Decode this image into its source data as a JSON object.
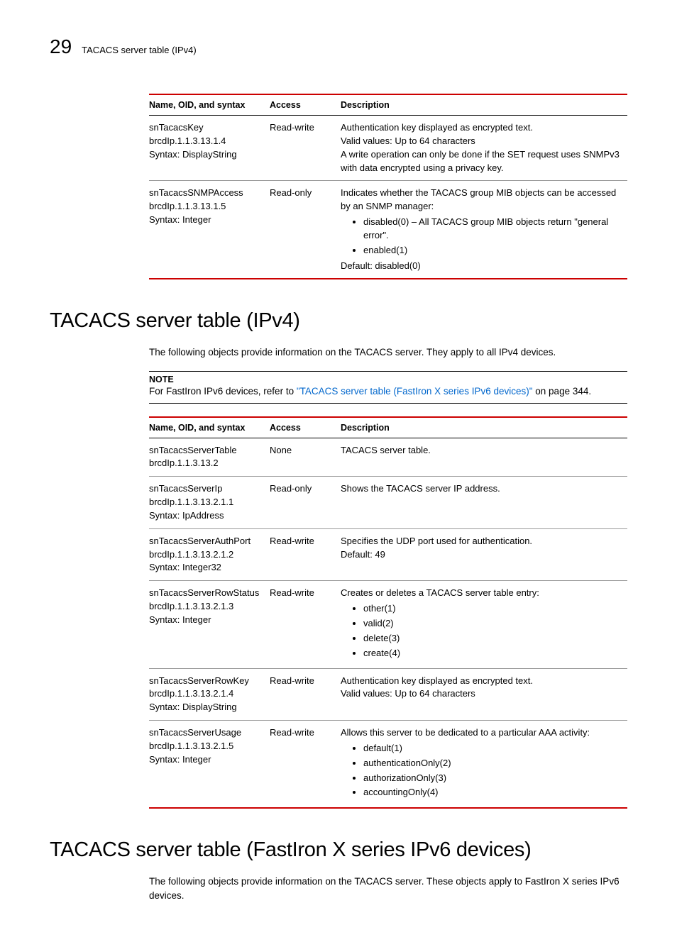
{
  "header": {
    "page_number": "29",
    "running_title": "TACACS server table (IPv4)"
  },
  "table1": {
    "columns": [
      "Name, OID, and syntax",
      "Access",
      "Description"
    ],
    "rows": [
      {
        "name_lines": [
          "snTacacsKey",
          "brcdIp.1.1.3.13.1.4",
          "Syntax: DisplayString"
        ],
        "access": "Read-write",
        "desc_lines": [
          "Authentication key displayed as encrypted text.",
          "Valid values: Up to 64 characters",
          "A write operation can only be done if the SET request uses SNMPv3 with data encrypted using a privacy key."
        ],
        "bullets": [],
        "trailing": []
      },
      {
        "name_lines": [
          "snTacacsSNMPAccess",
          "brcdIp.1.1.3.13.1.5",
          "Syntax: Integer"
        ],
        "access": "Read-only",
        "desc_lines": [
          "Indicates whether the TACACS group MIB objects can be accessed by an SNMP manager:"
        ],
        "bullets": [
          "disabled(0) – All TACACS group MIB objects return \"general error\".",
          "enabled(1)"
        ],
        "trailing": [
          "Default: disabled(0)"
        ]
      }
    ]
  },
  "section1": {
    "title": "TACACS server table (IPv4)",
    "intro": "The following objects provide information on the TACACS server. They apply to all IPv4 devices.",
    "note_label": "NOTE",
    "note_pre": "For FastIron IPv6 devices, refer to ",
    "note_link": "\"TACACS server table (FastIron X series IPv6 devices)\"",
    "note_post": " on page 344."
  },
  "table2": {
    "columns": [
      "Name, OID, and syntax",
      "Access",
      "Description"
    ],
    "rows": [
      {
        "name_lines": [
          "snTacacsServerTable",
          "brcdIp.1.1.3.13.2"
        ],
        "access": "None",
        "desc_lines": [
          "TACACS server table."
        ],
        "bullets": [],
        "trailing": []
      },
      {
        "name_lines": [
          "snTacacsServerIp",
          "brcdIp.1.1.3.13.2.1.1",
          "Syntax: IpAddress"
        ],
        "access": "Read-only",
        "desc_lines": [
          "Shows the TACACS server IP address."
        ],
        "bullets": [],
        "trailing": []
      },
      {
        "name_lines": [
          "snTacacsServerAuthPort",
          "brcdIp.1.1.3.13.2.1.2",
          "Syntax: Integer32"
        ],
        "access": "Read-write",
        "desc_lines": [
          "Specifies the UDP port used for authentication.",
          "Default: 49"
        ],
        "bullets": [],
        "trailing": []
      },
      {
        "name_lines": [
          "snTacacsServerRowStatus",
          "brcdIp.1.1.3.13.2.1.3",
          "Syntax: Integer"
        ],
        "access": "Read-write",
        "desc_lines": [
          "Creates or deletes a TACACS server table entry:"
        ],
        "bullets": [
          "other(1)",
          "valid(2)",
          "delete(3)",
          "create(4)"
        ],
        "trailing": []
      },
      {
        "name_lines": [
          "snTacacsServerRowKey",
          "brcdIp.1.1.3.13.2.1.4",
          "Syntax: DisplayString"
        ],
        "access": "Read-write",
        "desc_lines": [
          "Authentication key displayed as encrypted text.",
          "Valid values: Up to 64 characters"
        ],
        "bullets": [],
        "trailing": []
      },
      {
        "name_lines": [
          "snTacacsServerUsage",
          "brcdIp.1.1.3.13.2.1.5",
          "Syntax: Integer"
        ],
        "access": "Read-write",
        "desc_lines": [
          "Allows this server to be dedicated to a particular AAA activity:"
        ],
        "bullets": [
          "default(1)",
          "authenticationOnly(2)",
          "authorizationOnly(3)",
          "accountingOnly(4)"
        ],
        "trailing": []
      }
    ]
  },
  "section2": {
    "title": "TACACS server table (FastIron X series IPv6 devices)",
    "intro": "The following objects provide information on the TACACS server. These objects apply to FastIron X series IPv6 devices."
  }
}
